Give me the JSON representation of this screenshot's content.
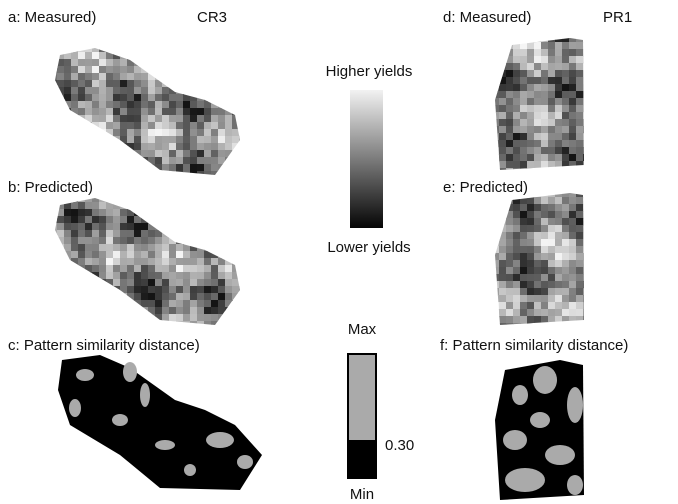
{
  "panels": {
    "a": {
      "label": "a: Measured)",
      "field": "CR3"
    },
    "b": {
      "label": "b: Predicted)"
    },
    "c": {
      "label": "c: Pattern similarity distance)"
    },
    "d": {
      "label": "d: Measured)",
      "field": "PR1"
    },
    "e": {
      "label": "e: Predicted)"
    },
    "f": {
      "label": "f: Pattern similarity distance)"
    }
  },
  "yield_legend": {
    "top": "Higher yields",
    "bottom": "Lower yields"
  },
  "distance_legend": {
    "top": "Max",
    "threshold": "0.30",
    "bottom": "Min"
  }
}
